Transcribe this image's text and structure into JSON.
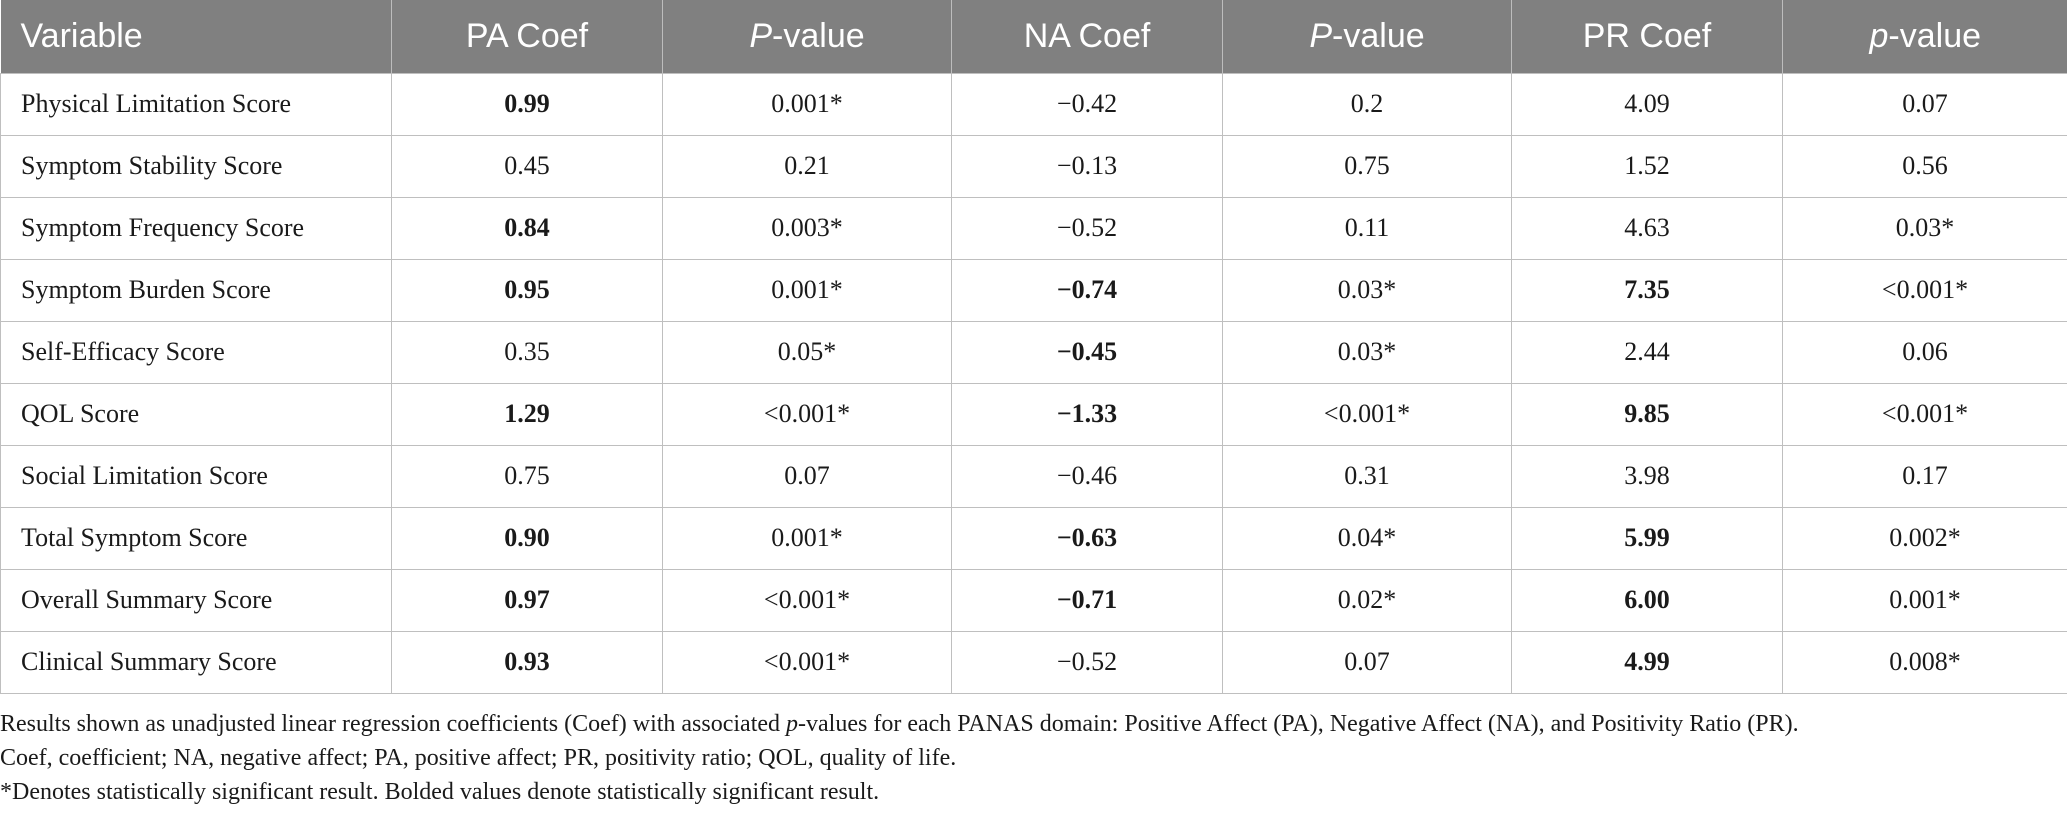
{
  "table": {
    "headers": [
      {
        "pre": "Variable",
        "ital": "",
        "post": ""
      },
      {
        "pre": "PA Coef",
        "ital": "",
        "post": ""
      },
      {
        "pre": "",
        "ital": "P",
        "post": "-value"
      },
      {
        "pre": "NA Coef",
        "ital": "",
        "post": ""
      },
      {
        "pre": "",
        "ital": "P",
        "post": "-value"
      },
      {
        "pre": "PR Coef",
        "ital": "",
        "post": ""
      },
      {
        "pre": "",
        "ital": "p",
        "post": "-value"
      }
    ],
    "rows": [
      {
        "cells": [
          "Physical Limitation Score",
          "0.99",
          "0.001*",
          "−0.42",
          "0.2",
          "4.09",
          "0.07"
        ],
        "bold": [
          false,
          true,
          false,
          false,
          false,
          false,
          false
        ]
      },
      {
        "cells": [
          "Symptom Stability Score",
          "0.45",
          "0.21",
          "−0.13",
          "0.75",
          "1.52",
          "0.56"
        ],
        "bold": [
          false,
          false,
          false,
          false,
          false,
          false,
          false
        ]
      },
      {
        "cells": [
          "Symptom Frequency Score",
          "0.84",
          "0.003*",
          "−0.52",
          "0.11",
          "4.63",
          "0.03*"
        ],
        "bold": [
          false,
          true,
          false,
          false,
          false,
          false,
          false
        ]
      },
      {
        "cells": [
          "Symptom Burden Score",
          "0.95",
          "0.001*",
          "−0.74",
          "0.03*",
          "7.35",
          "<0.001*"
        ],
        "bold": [
          false,
          true,
          false,
          true,
          false,
          true,
          false
        ]
      },
      {
        "cells": [
          "Self-Efficacy Score",
          "0.35",
          "0.05*",
          "−0.45",
          "0.03*",
          "2.44",
          "0.06"
        ],
        "bold": [
          false,
          false,
          false,
          true,
          false,
          false,
          false
        ]
      },
      {
        "cells": [
          "QOL Score",
          "1.29",
          "<0.001*",
          "−1.33",
          "<0.001*",
          "9.85",
          "<0.001*"
        ],
        "bold": [
          false,
          true,
          false,
          true,
          false,
          true,
          false
        ]
      },
      {
        "cells": [
          "Social Limitation Score",
          "0.75",
          "0.07",
          "−0.46",
          "0.31",
          "3.98",
          "0.17"
        ],
        "bold": [
          false,
          false,
          false,
          false,
          false,
          false,
          false
        ]
      },
      {
        "cells": [
          "Total Symptom Score",
          "0.90",
          "0.001*",
          "−0.63",
          "0.04*",
          "5.99",
          "0.002*"
        ],
        "bold": [
          false,
          true,
          false,
          true,
          false,
          true,
          false
        ]
      },
      {
        "cells": [
          "Overall Summary Score",
          "0.97",
          "<0.001*",
          "−0.71",
          "0.02*",
          "6.00",
          "0.001*"
        ],
        "bold": [
          false,
          true,
          false,
          true,
          false,
          true,
          false
        ]
      },
      {
        "cells": [
          "Clinical Summary Score",
          "0.93",
          "<0.001*",
          "−0.52",
          "0.07",
          "4.99",
          "0.008*"
        ],
        "bold": [
          false,
          true,
          false,
          false,
          false,
          true,
          false
        ]
      }
    ]
  },
  "notes": {
    "line1_pre": "Results shown as unadjusted linear regression coefficients (Coef) with associated ",
    "line1_ital": "p",
    "line1_post": "-values for each PANAS domain: Positive Affect (PA), Negative Affect (NA), and Positivity Ratio (PR).",
    "line2": "Coef, coefficient; NA, negative affect; PA, positive affect; PR, positivity ratio; QOL, quality of life.",
    "line3": "*Denotes statistically significant result. Bolded values denote statistically significant result."
  },
  "colors": {
    "header_bg": "#808080",
    "header_text": "#ffffff",
    "grid": "#bfbfbf"
  }
}
